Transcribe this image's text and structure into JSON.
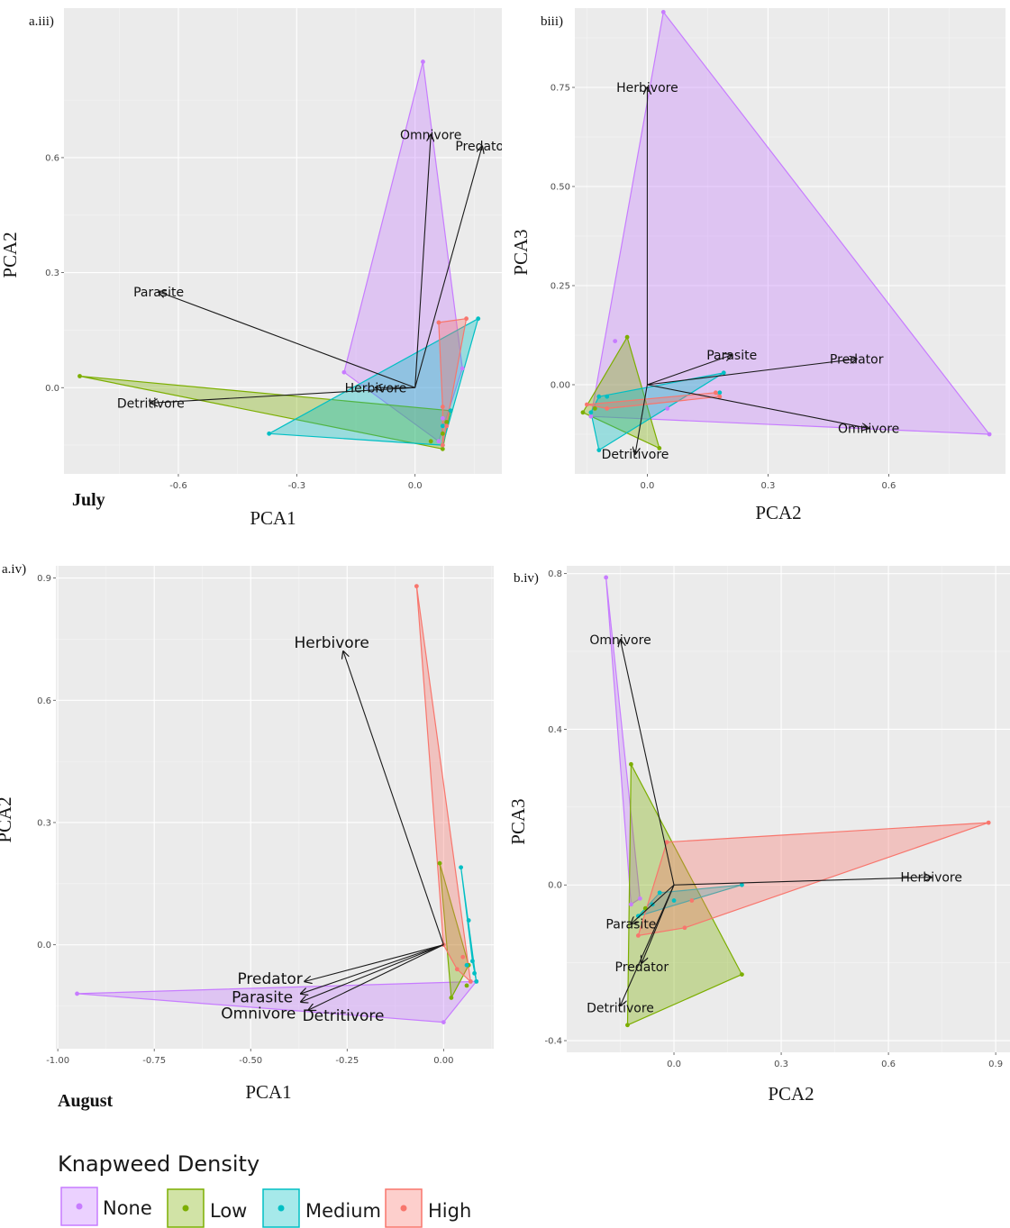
{
  "figure": {
    "month_labels": [
      "July",
      "August"
    ]
  },
  "legend": {
    "title": "Knapweed Density",
    "entries": [
      {
        "label": "None",
        "color": "#C77CFF"
      },
      {
        "label": "Low",
        "color": "#7CAE00"
      },
      {
        "label": "Medium",
        "color": "#00BFC4"
      },
      {
        "label": "High",
        "color": "#F8766D"
      }
    ]
  },
  "chart_data": [
    {
      "panel": "a.iii)",
      "type": "scatter",
      "xlabel": "PCA1",
      "ylabel": "PCA2",
      "xlim": [
        -0.89,
        0.22
      ],
      "ylim": [
        -0.225,
        0.99
      ],
      "xticks": [
        -0.6,
        -0.3,
        0.0
      ],
      "xtick_labels": [
        "-0.6",
        "-0.3",
        "0.0"
      ],
      "yticks": [
        0.0,
        0.3,
        0.6
      ],
      "ytick_labels": [
        "0.0",
        "0.3",
        "0.6"
      ],
      "series": [
        {
          "name": "None",
          "points": [
            [
              0.02,
              0.85
            ],
            [
              -0.18,
              0.04
            ],
            [
              0.07,
              -0.08
            ],
            [
              0.12,
              0.05
            ],
            [
              0.08,
              -0.1
            ],
            [
              0.06,
              -0.14
            ]
          ],
          "hull": [
            [
              0.02,
              0.85
            ],
            [
              -0.18,
              0.04
            ],
            [
              0.06,
              -0.14
            ],
            [
              0.12,
              0.05
            ]
          ]
        },
        {
          "name": "Low",
          "points": [
            [
              -0.85,
              0.03
            ],
            [
              0.07,
              -0.16
            ],
            [
              0.04,
              -0.14
            ],
            [
              0.08,
              -0.09
            ],
            [
              0.09,
              -0.06
            ],
            [
              0.07,
              -0.12
            ]
          ],
          "hull": [
            [
              -0.85,
              0.03
            ],
            [
              0.07,
              -0.16
            ],
            [
              0.09,
              -0.06
            ]
          ]
        },
        {
          "name": "Medium",
          "points": [
            [
              -0.37,
              -0.12
            ],
            [
              0.16,
              0.18
            ],
            [
              0.07,
              -0.15
            ],
            [
              0.09,
              -0.06
            ],
            [
              0.07,
              -0.1
            ]
          ],
          "hull": [
            [
              -0.37,
              -0.12
            ],
            [
              0.07,
              -0.15
            ],
            [
              0.16,
              0.18
            ]
          ]
        },
        {
          "name": "High",
          "points": [
            [
              0.06,
              0.17
            ],
            [
              0.13,
              0.18
            ],
            [
              0.07,
              -0.15
            ],
            [
              0.07,
              -0.05
            ],
            [
              0.08,
              -0.1
            ]
          ],
          "hull": [
            [
              0.06,
              0.17
            ],
            [
              0.13,
              0.18
            ],
            [
              0.07,
              -0.15
            ],
            [
              0.07,
              -0.05
            ]
          ]
        }
      ],
      "arrow_origin": [
        0.0,
        0.0
      ],
      "arrows": [
        {
          "name": "Omnivore",
          "end": [
            0.04,
            0.66
          ],
          "label": [
            0.04,
            0.66
          ]
        },
        {
          "name": "Predator",
          "end": [
            0.17,
            0.63
          ],
          "label": [
            0.17,
            0.63
          ]
        },
        {
          "name": "Parasite",
          "end": [
            -0.65,
            0.25
          ],
          "label": [
            -0.65,
            0.25
          ]
        },
        {
          "name": "Herbivore",
          "end": [
            -0.1,
            0.0
          ],
          "label": [
            -0.1,
            0.0
          ]
        },
        {
          "name": "Detritivore",
          "end": [
            -0.67,
            -0.04
          ],
          "label": [
            -0.67,
            -0.04
          ]
        }
      ]
    },
    {
      "panel": "biii)",
      "type": "scatter",
      "xlabel": "PCA2",
      "ylabel": "PCA3",
      "xlim": [
        -0.18,
        0.89
      ],
      "ylim": [
        -0.225,
        0.95
      ],
      "xticks": [
        0.0,
        0.3,
        0.6
      ],
      "xtick_labels": [
        "0.0",
        "0.3",
        "0.6"
      ],
      "yticks": [
        0.0,
        0.25,
        0.5,
        0.75
      ],
      "ytick_labels": [
        "0.00",
        "0.25",
        "0.50",
        "0.75"
      ],
      "series": [
        {
          "name": "None",
          "points": [
            [
              0.04,
              0.94
            ],
            [
              0.85,
              -0.125
            ],
            [
              -0.08,
              0.11
            ],
            [
              0.05,
              -0.06
            ],
            [
              -0.14,
              -0.08
            ]
          ],
          "hull": [
            [
              0.04,
              0.94
            ],
            [
              0.85,
              -0.125
            ],
            [
              -0.14,
              -0.08
            ]
          ]
        },
        {
          "name": "Low",
          "points": [
            [
              -0.05,
              0.12
            ],
            [
              -0.16,
              -0.07
            ],
            [
              0.03,
              -0.16
            ],
            [
              -0.13,
              -0.06
            ]
          ],
          "hull": [
            [
              -0.05,
              0.12
            ],
            [
              -0.16,
              -0.07
            ],
            [
              0.03,
              -0.16
            ]
          ]
        },
        {
          "name": "Medium",
          "points": [
            [
              -0.12,
              -0.165
            ],
            [
              0.19,
              0.03
            ],
            [
              -0.1,
              -0.03
            ],
            [
              -0.12,
              -0.03
            ],
            [
              0.18,
              -0.02
            ],
            [
              -0.14,
              -0.07
            ]
          ],
          "hull": [
            [
              -0.12,
              -0.165
            ],
            [
              -0.14,
              -0.07
            ],
            [
              -0.12,
              -0.03
            ],
            [
              0.19,
              0.03
            ]
          ]
        },
        {
          "name": "High",
          "points": [
            [
              0.17,
              -0.02
            ],
            [
              -0.15,
              -0.05
            ],
            [
              -0.1,
              -0.06
            ],
            [
              0.18,
              -0.03
            ]
          ],
          "hull": [
            [
              0.17,
              -0.02
            ],
            [
              -0.15,
              -0.05
            ],
            [
              -0.1,
              -0.06
            ],
            [
              0.18,
              -0.03
            ]
          ]
        }
      ],
      "arrow_origin": [
        0.0,
        0.0
      ],
      "arrows": [
        {
          "name": "Herbivore",
          "end": [
            0.0,
            0.75
          ],
          "label": [
            0.0,
            0.75
          ]
        },
        {
          "name": "Parasite",
          "end": [
            0.21,
            0.075
          ],
          "label": [
            0.21,
            0.075
          ]
        },
        {
          "name": "Predator",
          "end": [
            0.52,
            0.065
          ],
          "label": [
            0.52,
            0.065
          ]
        },
        {
          "name": "Omnivore",
          "end": [
            0.55,
            -0.11
          ],
          "label": [
            0.55,
            -0.11
          ]
        },
        {
          "name": "Detritivore",
          "end": [
            -0.03,
            -0.175
          ],
          "label": [
            -0.03,
            -0.175
          ]
        }
      ]
    },
    {
      "panel": "a.iv)",
      "type": "scatter",
      "xlabel": "PCA1",
      "ylabel": "PCA2",
      "xlim": [
        -1.005,
        0.13
      ],
      "ylim": [
        -0.255,
        0.93
      ],
      "xticks": [
        -1.0,
        -0.75,
        -0.5,
        -0.25,
        0.0
      ],
      "xtick_labels": [
        "-1.00",
        "-0.75",
        "-0.50",
        "-0.25",
        "0.00"
      ],
      "yticks": [
        0.0,
        0.3,
        0.6,
        0.9
      ],
      "ytick_labels": [
        "0.0",
        "0.3",
        "0.6",
        "0.9"
      ],
      "series": [
        {
          "name": "None",
          "points": [
            [
              -0.95,
              -0.12
            ],
            [
              0.0,
              -0.19
            ],
            [
              0.085,
              -0.09
            ],
            [
              0.07,
              -0.09
            ]
          ],
          "hull": [
            [
              -0.95,
              -0.12
            ],
            [
              0.0,
              -0.19
            ],
            [
              0.085,
              -0.09
            ]
          ]
        },
        {
          "name": "Low",
          "points": [
            [
              -0.01,
              0.2
            ],
            [
              0.02,
              -0.13
            ],
            [
              0.06,
              -0.1
            ],
            [
              0.065,
              -0.05
            ]
          ],
          "hull": [
            [
              -0.01,
              0.2
            ],
            [
              0.02,
              -0.13
            ],
            [
              0.065,
              -0.05
            ]
          ]
        },
        {
          "name": "Medium",
          "points": [
            [
              0.045,
              0.19
            ],
            [
              0.065,
              0.06
            ],
            [
              0.075,
              -0.04
            ],
            [
              0.08,
              -0.07
            ],
            [
              0.085,
              -0.09
            ],
            [
              0.06,
              -0.05
            ]
          ],
          "hull": [
            [
              0.045,
              0.19
            ],
            [
              0.085,
              -0.09
            ],
            [
              0.075,
              -0.04
            ]
          ]
        },
        {
          "name": "High",
          "points": [
            [
              -0.07,
              0.88
            ],
            [
              0.0,
              0.0
            ],
            [
              0.05,
              -0.03
            ],
            [
              0.07,
              -0.09
            ],
            [
              0.035,
              -0.06
            ]
          ],
          "hull": [
            [
              -0.07,
              0.88
            ],
            [
              0.0,
              0.0
            ],
            [
              0.035,
              -0.06
            ],
            [
              0.07,
              -0.09
            ]
          ]
        }
      ],
      "arrow_origin": [
        0.0,
        0.0
      ],
      "arrows": [
        {
          "name": "Herbivore",
          "end": [
            -0.26,
            0.72
          ],
          "label": [
            -0.29,
            0.74
          ]
        },
        {
          "name": "Predator",
          "end": [
            -0.36,
            -0.09
          ],
          "label": [
            -0.45,
            -0.085
          ]
        },
        {
          "name": "Parasite",
          "end": [
            -0.37,
            -0.12
          ],
          "label": [
            -0.47,
            -0.13
          ]
        },
        {
          "name": "Omnivore",
          "end": [
            -0.35,
            -0.16
          ],
          "label": [
            -0.48,
            -0.17
          ]
        },
        {
          "name": "Detritivore",
          "end": [
            -0.37,
            -0.14
          ],
          "label": [
            -0.26,
            -0.175
          ]
        }
      ]
    },
    {
      "panel": "b.iv)",
      "type": "scatter",
      "xlabel": "PCA2",
      "ylabel": "PCA3",
      "xlim": [
        -0.3,
        0.94
      ],
      "ylim": [
        -0.43,
        0.82
      ],
      "xticks": [
        0.0,
        0.3,
        0.6,
        0.9
      ],
      "xtick_labels": [
        "0.0",
        "0.3",
        "0.6",
        "0.9"
      ],
      "yticks": [
        -0.4,
        0.0,
        0.4,
        0.8
      ],
      "ytick_labels": [
        "-0.4",
        "0.0",
        "0.4",
        "0.8"
      ],
      "series": [
        {
          "name": "None",
          "points": [
            [
              -0.19,
              0.79
            ],
            [
              -0.12,
              -0.05
            ],
            [
              -0.095,
              -0.035
            ]
          ],
          "hull": [
            [
              -0.19,
              0.79
            ],
            [
              -0.12,
              -0.05
            ],
            [
              -0.095,
              -0.035
            ]
          ]
        },
        {
          "name": "Low",
          "points": [
            [
              -0.12,
              0.31
            ],
            [
              -0.13,
              -0.36
            ],
            [
              0.19,
              -0.23
            ],
            [
              -0.08,
              -0.06
            ]
          ],
          "hull": [
            [
              -0.12,
              0.31
            ],
            [
              -0.13,
              -0.36
            ],
            [
              0.19,
              -0.23
            ]
          ]
        },
        {
          "name": "Medium",
          "points": [
            [
              -0.1,
              -0.08
            ],
            [
              0.19,
              0.0
            ],
            [
              -0.04,
              -0.02
            ],
            [
              -0.06,
              -0.05
            ],
            [
              0.0,
              -0.04
            ]
          ],
          "hull": [
            [
              -0.1,
              -0.08
            ],
            [
              -0.04,
              -0.02
            ],
            [
              0.19,
              0.0
            ]
          ]
        },
        {
          "name": "High",
          "points": [
            [
              0.88,
              0.16
            ],
            [
              -0.02,
              0.11
            ],
            [
              -0.1,
              -0.13
            ],
            [
              0.03,
              -0.11
            ],
            [
              0.05,
              -0.04
            ]
          ],
          "hull": [
            [
              -0.02,
              0.11
            ],
            [
              0.88,
              0.16
            ],
            [
              0.03,
              -0.11
            ],
            [
              -0.1,
              -0.13
            ]
          ]
        }
      ],
      "arrow_origin": [
        0.0,
        0.0
      ],
      "arrows": [
        {
          "name": "Omnivore",
          "end": [
            -0.15,
            0.63
          ],
          "label": [
            -0.15,
            0.63
          ]
        },
        {
          "name": "Herbivore",
          "end": [
            0.72,
            0.02
          ],
          "label": [
            0.72,
            0.02
          ]
        },
        {
          "name": "Parasite",
          "end": [
            -0.12,
            -0.1
          ],
          "label": [
            -0.12,
            -0.1
          ]
        },
        {
          "name": "Predator",
          "end": [
            -0.09,
            -0.2
          ],
          "label": [
            -0.09,
            -0.21
          ]
        },
        {
          "name": "Detritivore",
          "end": [
            -0.15,
            -0.31
          ],
          "label": [
            -0.15,
            -0.315
          ]
        }
      ]
    }
  ]
}
